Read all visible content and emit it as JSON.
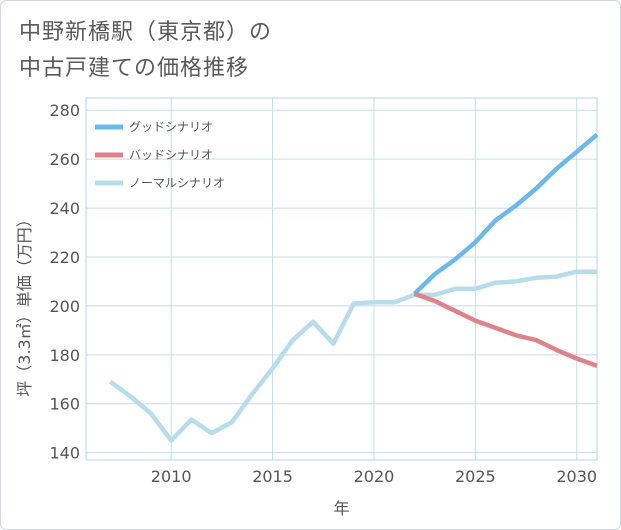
{
  "title_lines": [
    "中野新橋駅（東京都）の",
    "中古戸建ての価格推移"
  ],
  "chart_data": {
    "type": "line",
    "xlabel": "年",
    "ylabel": "坪（3.3㎡）単価（万円）",
    "xlim": [
      2005.8,
      2031.0
    ],
    "ylim": [
      137,
      285
    ],
    "xticks": [
      2010,
      2015,
      2020,
      2025,
      2030
    ],
    "yticks": [
      140,
      160,
      180,
      200,
      220,
      240,
      260,
      280
    ],
    "grid": true,
    "legend_position": "top-left",
    "series": [
      {
        "name": "グッドシナリオ",
        "color": "#6cb8ea",
        "x": [
          2022,
          2023,
          2024,
          2025,
          2026,
          2027,
          2028,
          2029,
          2030,
          2031
        ],
        "values": [
          205,
          213,
          219,
          226,
          235,
          241,
          248,
          256,
          263,
          270
        ]
      },
      {
        "name": "バッドシナリオ",
        "color": "#de838b",
        "x": [
          2022,
          2023,
          2024,
          2025,
          2026,
          2027,
          2028,
          2029,
          2030,
          2031
        ],
        "values": [
          205,
          202,
          198,
          194,
          191,
          188,
          186,
          182,
          178.5,
          175.5
        ]
      },
      {
        "name": "ノーマルシナリオ",
        "color": "#b7dcec",
        "x": [
          2007,
          2008,
          2009,
          2010,
          2011,
          2012,
          2013,
          2014,
          2015,
          2016,
          2017,
          2018,
          2019,
          2020,
          2021,
          2022,
          2023,
          2024,
          2025,
          2026,
          2027,
          2028,
          2029,
          2030,
          2031
        ],
        "values": [
          169,
          163,
          156,
          145,
          153.5,
          148,
          152.5,
          164,
          174.5,
          186,
          193.5,
          184.5,
          201,
          201.5,
          201.5,
          204.5,
          204.5,
          207,
          207,
          209.5,
          210,
          211.5,
          212,
          214,
          214
        ]
      }
    ]
  }
}
